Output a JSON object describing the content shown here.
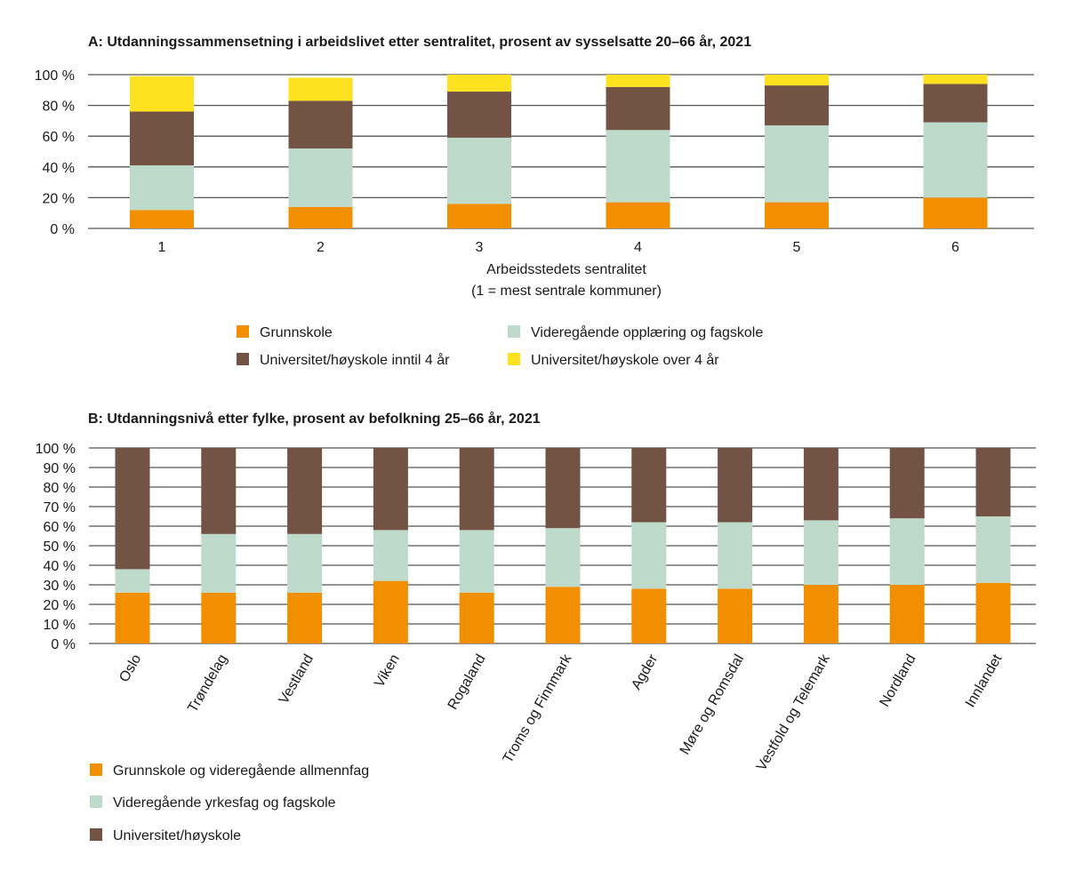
{
  "chart_data": [
    {
      "id": "A",
      "type": "bar",
      "stacked": true,
      "title": "A: Utdanningssammensetning i arbeidslivet etter sentralitet, prosent av sysselsatte 20–66 år, 2021",
      "xlabel": "Arbeidsstedets sentralitet",
      "xlabel_sub": "(1 = mest sentrale kommuner)",
      "ylabel": "",
      "ylim": [
        0,
        100
      ],
      "yticks": [
        0,
        20,
        40,
        60,
        80,
        100
      ],
      "ytick_labels": [
        "0 %",
        "20 %",
        "40 %",
        "60 %",
        "80 %",
        "100 %"
      ],
      "grid": true,
      "legend_position": "bottom",
      "categories": [
        "1",
        "2",
        "3",
        "4",
        "5",
        "6"
      ],
      "series": [
        {
          "name": "Grunnskole",
          "color": "#f18f00",
          "values": [
            12,
            14,
            16,
            17,
            17,
            20
          ]
        },
        {
          "name": "Videregående opplæring og fagskole",
          "color": "#bedacb",
          "values": [
            29,
            38,
            43,
            47,
            50,
            49
          ]
        },
        {
          "name": "Universitet/høyskole inntil 4 år",
          "color": "#735444",
          "values": [
            35,
            31,
            30,
            28,
            26,
            25
          ]
        },
        {
          "name": "Universitet/høyskole over 4 år",
          "color": "#ffe21f",
          "values": [
            23,
            15,
            11,
            8,
            7,
            6
          ]
        }
      ],
      "legend_order": [
        0,
        1,
        2,
        3
      ]
    },
    {
      "id": "B",
      "type": "bar",
      "stacked": true,
      "title": "B: Utdanningsnivå etter fylke, prosent av befolkning 25–66 år, 2021",
      "xlabel": "",
      "ylabel": "",
      "ylim": [
        0,
        100
      ],
      "yticks": [
        0,
        10,
        20,
        30,
        40,
        50,
        60,
        70,
        80,
        90,
        100
      ],
      "ytick_labels": [
        "0 %",
        "10 %",
        "20 %",
        "30 %",
        "40 %",
        "50 %",
        "60 %",
        "70 %",
        "80 %",
        "90 %",
        "100 %"
      ],
      "grid": true,
      "legend_position": "bottom-left",
      "categories": [
        "Oslo",
        "Trøndelag",
        "Vestland",
        "Viken",
        "Rogaland",
        "Troms og Finnmark",
        "Agder",
        "Møre og Romsdal",
        "Vestfold og Telemark",
        "Nordland",
        "Innlandet"
      ],
      "series": [
        {
          "name": "Grunnskole og videregående allmennfag",
          "color": "#f18f00",
          "values": [
            26,
            26,
            26,
            32,
            26,
            29,
            28,
            28,
            30,
            30,
            31
          ]
        },
        {
          "name": "Videregående yrkesfag og fagskole",
          "color": "#bedacb",
          "values": [
            12,
            30,
            30,
            26,
            32,
            30,
            34,
            34,
            33,
            34,
            34
          ]
        },
        {
          "name": "Universitet/høyskole",
          "color": "#735444",
          "values": [
            62,
            44,
            44,
            42,
            42,
            41,
            38,
            38,
            37,
            36,
            35
          ]
        }
      ]
    }
  ]
}
